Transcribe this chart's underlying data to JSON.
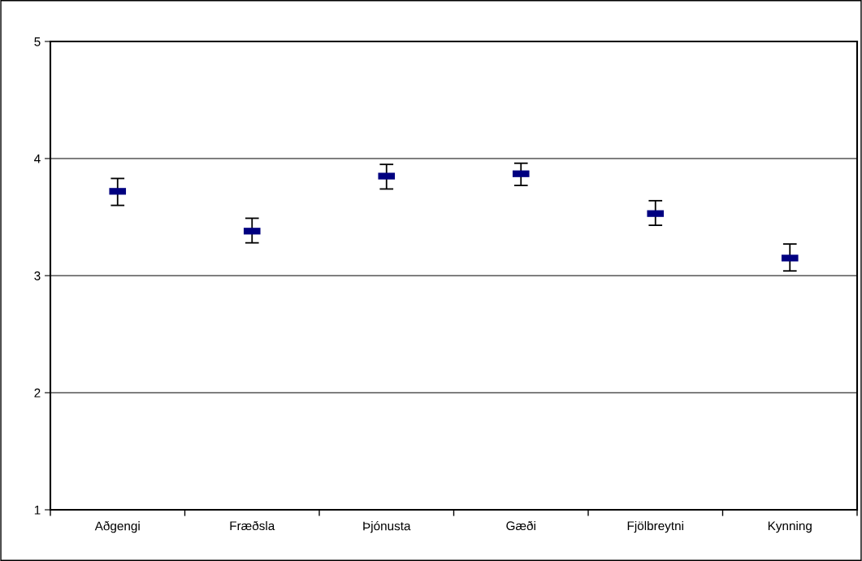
{
  "chart_data": {
    "type": "scatter",
    "categories": [
      "Aðgengi",
      "Fræðsla",
      "Þjónusta",
      "Gæði",
      "Fjölbreytni",
      "Kynning"
    ],
    "series": [
      {
        "color": "#000080",
        "values": [
          3.72,
          3.38,
          3.85,
          3.87,
          3.53,
          3.15
        ],
        "errors": [
          [
            3.6,
            3.83
          ],
          [
            3.28,
            3.49
          ],
          [
            3.74,
            3.95
          ],
          [
            3.77,
            3.96
          ],
          [
            3.43,
            3.64
          ],
          [
            3.04,
            3.27
          ]
        ]
      }
    ],
    "marker": "square",
    "ylim": [
      1,
      5
    ],
    "yticks": [
      1,
      2,
      3,
      4,
      5
    ],
    "grid": "y"
  }
}
